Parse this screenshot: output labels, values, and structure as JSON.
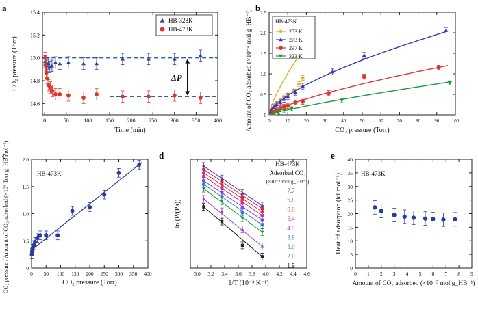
{
  "panels": [
    {
      "id": "a",
      "panel_label": "a",
      "type": "scatter",
      "xlabel": "Time (min)",
      "ylabel": "CO₂ pressure (Torr)",
      "xlim": [
        -5,
        400
      ],
      "ylim": [
        14.5,
        15.4
      ],
      "xticks": [
        0,
        50,
        100,
        150,
        200,
        250,
        300,
        350,
        400
      ],
      "yticks": [
        14.6,
        14.8,
        15.0,
        15.2,
        15.4
      ],
      "ytick_labels": [
        "14.6",
        "14.8",
        "15.0",
        "15.2",
        "15.4"
      ],
      "legend": [
        "HB-323K",
        "HB-473K"
      ],
      "legend_position": "top-right",
      "annotation": "ΔP",
      "hlines": [
        15.0,
        14.66
      ],
      "series": [
        {
          "name": "HB-323K",
          "marker": "triangle",
          "color": "#2b3d9a",
          "err": 0.05,
          "x": [
            1,
            3,
            5,
            8,
            12,
            17,
            25,
            35,
            55,
            90,
            120,
            180,
            240,
            300,
            360
          ],
          "y": [
            14.97,
            14.94,
            14.93,
            14.95,
            14.92,
            14.93,
            14.96,
            14.95,
            14.96,
            14.95,
            14.95,
            14.99,
            14.99,
            14.99,
            15.02
          ]
        },
        {
          "name": "HB-473K",
          "marker": "circle",
          "color": "#e0352b",
          "err": 0.05,
          "x": [
            1,
            2,
            4,
            6,
            9,
            13,
            18,
            25,
            35,
            55,
            90,
            120,
            180,
            240,
            300,
            360
          ],
          "y": [
            15.0,
            14.94,
            14.87,
            14.82,
            14.76,
            14.74,
            14.71,
            14.68,
            14.68,
            14.67,
            14.65,
            14.68,
            14.66,
            14.66,
            14.67,
            14.65
          ]
        }
      ]
    },
    {
      "id": "b",
      "panel_label": "b",
      "type": "scatter",
      "xlabel": "CO₂ pressure (Torr)",
      "ylabel": "Amount of CO₂ adsorbed (×10⁻⁴ mol g_HB⁻¹)",
      "xlim": [
        0,
        100
      ],
      "ylim": [
        0,
        2.5
      ],
      "xticks": [
        0,
        10,
        20,
        30,
        40,
        50,
        60,
        70,
        80,
        90,
        100
      ],
      "yticks": [
        0,
        0.5,
        1.0,
        1.5,
        2.0,
        2.5
      ],
      "ytick_labels": [
        "0",
        "0.5",
        "1.0",
        "1.5",
        "2.0",
        "2.5"
      ],
      "legend_title": "HB-473K",
      "legend": [
        "253 K",
        "273 K",
        "297 K",
        "323 K"
      ],
      "legend_position": "top-left",
      "series": [
        {
          "name": "253 K",
          "marker": "diamond",
          "color": "#f2a71c",
          "err": 0.06,
          "fit_a": 0.18,
          "fit_n": 0.75,
          "fit_xmax": 18,
          "x": [
            1,
            2,
            3,
            4,
            6,
            8,
            10,
            13,
            16,
            18
          ],
          "y": [
            0.05,
            0.13,
            0.22,
            0.25,
            0.33,
            0.42,
            0.5,
            0.6,
            0.75,
            0.9
          ]
        },
        {
          "name": "273 K",
          "marker": "triangle",
          "color": "#3d35b5",
          "err": 0.07,
          "fit_a": 0.105,
          "fit_n": 0.65,
          "fit_xmax": 96,
          "x": [
            1,
            2,
            3,
            4,
            6,
            8,
            10,
            14,
            18,
            34,
            51,
            95
          ],
          "y": [
            0.12,
            0.18,
            0.22,
            0.25,
            0.3,
            0.38,
            0.45,
            0.55,
            0.7,
            1.05,
            1.45,
            2.06
          ]
        },
        {
          "name": "297 K",
          "marker": "circle",
          "color": "#e0352b",
          "err": 0.06,
          "fit_a": 0.045,
          "fit_n": 0.72,
          "fit_xmax": 96,
          "x": [
            2,
            4,
            6,
            8,
            10,
            14,
            18,
            32,
            51,
            91
          ],
          "y": [
            0.05,
            0.1,
            0.15,
            0.2,
            0.22,
            0.3,
            0.32,
            0.53,
            0.93,
            1.15
          ]
        },
        {
          "name": "323 K",
          "marker": "triangle-down",
          "color": "#1b9a3a",
          "err": 0.05,
          "fit_a": 0.018,
          "fit_n": 0.83,
          "fit_xmax": 98,
          "x": [
            3,
            5,
            8,
            12,
            39,
            97
          ],
          "y": [
            0.04,
            0.07,
            0.1,
            0.15,
            0.35,
            0.78
          ]
        }
      ]
    },
    {
      "id": "c",
      "panel_label": "c",
      "type": "scatter",
      "xlabel": "CO₂ pressure (Torr)",
      "ylabel": "CO₂ pressure / Amount of CO₂ adsorbed (×10⁶ Torr g_HB mol⁻¹)",
      "xlim": [
        0,
        400
      ],
      "ylim": [
        0,
        2.0
      ],
      "xticks": [
        0,
        50,
        100,
        150,
        200,
        250,
        300,
        350,
        400
      ],
      "yticks": [
        0,
        0.5,
        1.0,
        1.5,
        2.0
      ],
      "ytick_labels": [
        "0",
        "0.5",
        "1.0",
        "1.5",
        "2.0"
      ],
      "inner_label": "HB-473K",
      "fit_line": {
        "slope": 0.00425,
        "intercept": 0.33,
        "x0": 0,
        "x1": 380
      },
      "series": [
        {
          "name": "HB-473K",
          "marker": "circle",
          "color": "#2b3d9a",
          "err": 0.08,
          "x": [
            1,
            2,
            3,
            5,
            8,
            12,
            20,
            30,
            50,
            90,
            140,
            200,
            250,
            300,
            370
          ],
          "y": [
            0.25,
            0.3,
            0.35,
            0.38,
            0.42,
            0.48,
            0.55,
            0.6,
            0.6,
            0.6,
            1.05,
            1.12,
            1.35,
            1.75,
            1.9
          ]
        }
      ]
    },
    {
      "id": "d",
      "panel_label": "d",
      "type": "scatter",
      "xlabel": "1/T (10⁻³ K⁻¹)",
      "ylabel": "ln (P/(Pa))",
      "xlim": [
        2.9,
        4.6
      ],
      "ylim": [
        4.8,
        9.6
      ],
      "xticks": [
        3.0,
        3.2,
        3.4,
        3.6,
        3.8,
        4.0,
        4.2,
        4.4,
        4.6
      ],
      "xtick_labels": [
        "3.0",
        "3.2",
        "3.4",
        "3.6",
        "3.8",
        "4.0",
        "4.2",
        "4.4",
        "4.6"
      ],
      "legend_title": "HB-473K",
      "legend_subtitle": "Adsorbed CO₂",
      "legend_units": "(×10⁻⁵ mol g_HB⁻¹)",
      "legend_position": "top-right",
      "x_points": [
        3.095,
        3.36,
        3.66,
        3.95
      ],
      "series": [
        {
          "name": "7.7",
          "color": "#3d35b5",
          "marker": "triangle",
          "y": [
            9.3,
            8.75,
            8.1,
            7.55
          ]
        },
        {
          "name": "6.8",
          "color": "#b5265b",
          "marker": "circle",
          "y": [
            9.15,
            8.62,
            7.95,
            7.42
          ]
        },
        {
          "name": "6.0",
          "color": "#e0352b",
          "marker": "circle",
          "y": [
            9.0,
            8.47,
            7.82,
            7.28
          ]
        },
        {
          "name": "5.4",
          "color": "#c2349e",
          "marker": "circle",
          "y": [
            8.85,
            8.32,
            7.67,
            7.12
          ]
        },
        {
          "name": "4.5",
          "color": "#9a3ec8",
          "marker": "circle",
          "y": [
            8.65,
            8.12,
            7.45,
            6.92
          ]
        },
        {
          "name": "3.8",
          "color": "#2c7ad1",
          "marker": "circle",
          "y": [
            8.5,
            7.95,
            7.25,
            6.7
          ]
        },
        {
          "name": "3.0",
          "color": "#1b9a3a",
          "marker": "triangle-down",
          "y": [
            8.3,
            7.75,
            7.0,
            6.38
          ]
        },
        {
          "name": "2.0",
          "color": "#9a3ec8",
          "marker": "triangle",
          "y": [
            7.85,
            7.3,
            6.5,
            5.75
          ]
        },
        {
          "name": "1.5",
          "color": "#222222",
          "marker": "square",
          "y": [
            7.5,
            6.85,
            5.8,
            5.3
          ]
        }
      ]
    },
    {
      "id": "e",
      "panel_label": "e",
      "type": "scatter",
      "xlabel": "Amount of CO₂ adsorbed (×10⁻⁵ mol g_HB⁻¹)",
      "ylabel": "Heat of adsorption (kJ mol⁻¹)",
      "xlim": [
        0,
        9
      ],
      "ylim": [
        0,
        40
      ],
      "xticks": [
        0,
        1,
        2,
        3,
        4,
        5,
        6,
        7,
        8,
        9
      ],
      "yticks": [
        0,
        5,
        10,
        15,
        20,
        25,
        30,
        35,
        40
      ],
      "inner_label": "HB-473K",
      "series": [
        {
          "name": "HB-473K",
          "marker": "circle",
          "color": "#2b3d9a",
          "err": 2.5,
          "x": [
            1.5,
            2.0,
            3.0,
            3.8,
            4.5,
            5.4,
            6.0,
            6.8,
            7.7
          ],
          "y": [
            22.3,
            21.0,
            19.5,
            18.9,
            18.5,
            18.2,
            18.0,
            17.8,
            17.9
          ]
        }
      ]
    }
  ]
}
